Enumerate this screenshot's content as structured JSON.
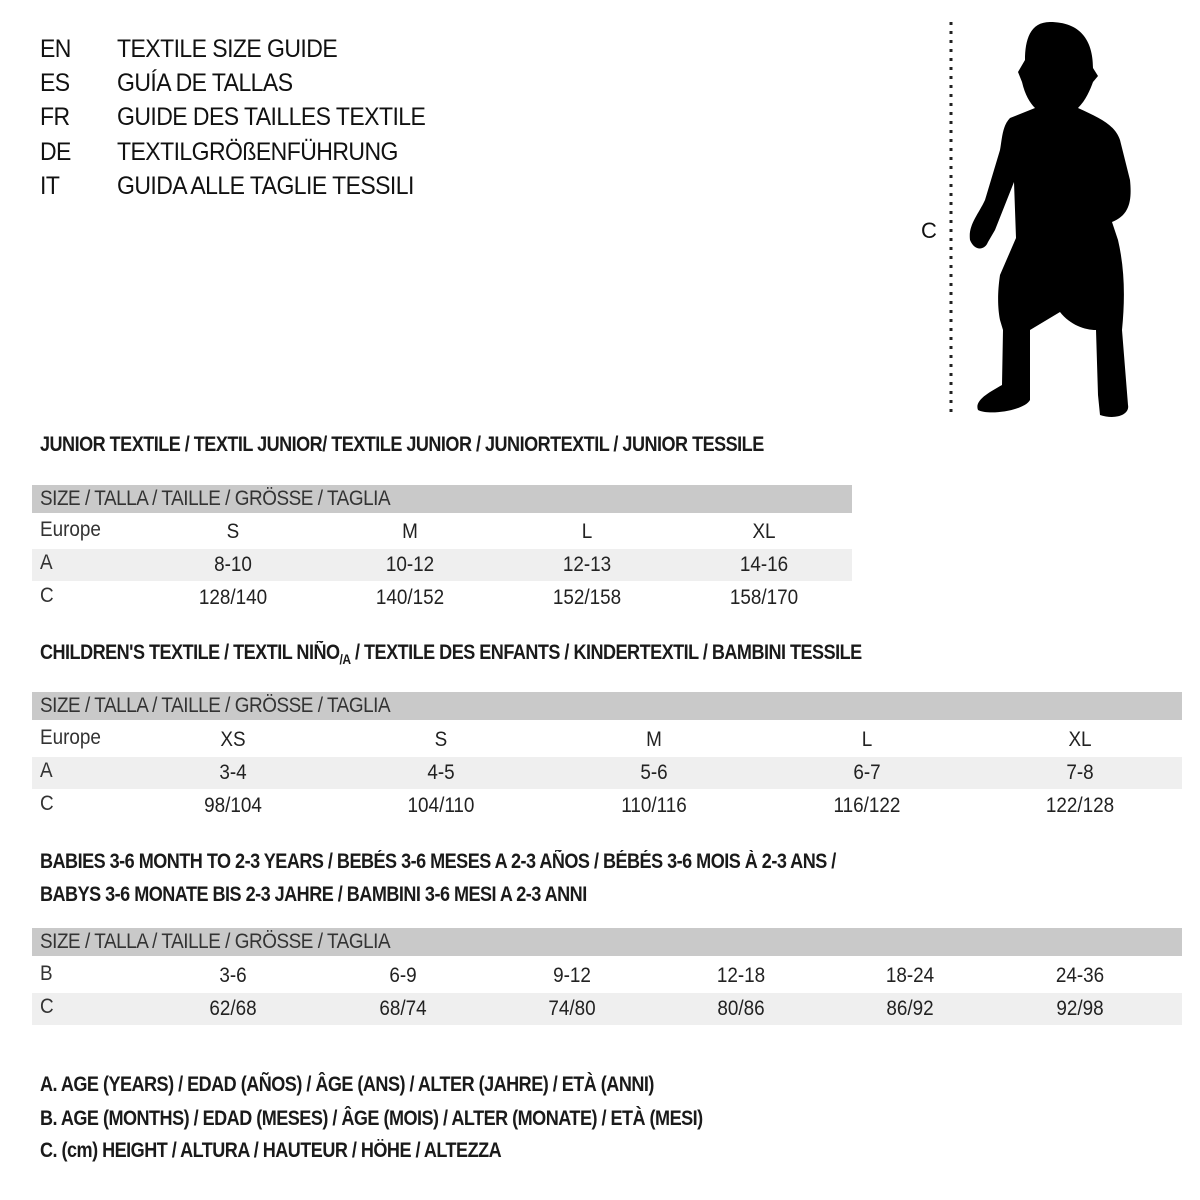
{
  "header": [
    {
      "code": "EN",
      "text": "TEXTILE SIZE GUIDE"
    },
    {
      "code": "ES",
      "text": "GUÍA DE TALLAS"
    },
    {
      "code": "FR",
      "text": "GUIDE DES TAILLES TEXTILE"
    },
    {
      "code": "DE",
      "text": "TEXTILGRÖßENFÜHRUNG"
    },
    {
      "code": "IT",
      "text": "GUIDA ALLE TAGLIE TESSILI"
    }
  ],
  "figure": {
    "measure_label": "C",
    "icon": "child-silhouette-icon"
  },
  "size_header": "SIZE / TALLA / TAILLE / GRÖSSE / TAGLIA",
  "junior": {
    "title": "JUNIOR TEXTILE / TEXTIL JUNIOR/ TEXTILE JUNIOR / JUNIORTEXTIL / JUNIOR TESSILE",
    "rows": [
      {
        "label": "Europe",
        "values": [
          "S",
          "M",
          "L",
          "XL"
        ]
      },
      {
        "label": "A",
        "values": [
          "8-10",
          "10-12",
          "12-13",
          "14-16"
        ]
      },
      {
        "label": "C",
        "values": [
          "128/140",
          "140/152",
          "152/158",
          "158/170"
        ]
      }
    ]
  },
  "children": {
    "title_pre": "CHILDREN'S TEXTILE / TEXTIL NIÑO",
    "title_sub": "/A",
    "title_post": " / TEXTILE DES ENFANTS / KINDERTEXTIL / BAMBINI TESSILE",
    "rows": [
      {
        "label": "Europe",
        "values": [
          "XS",
          "S",
          "M",
          "L",
          "XL"
        ]
      },
      {
        "label": "A",
        "values": [
          "3-4",
          "4-5",
          "5-6",
          "6-7",
          "7-8"
        ]
      },
      {
        "label": "C",
        "values": [
          "98/104",
          "104/110",
          "110/116",
          "116/122",
          "122/128"
        ]
      }
    ]
  },
  "babies": {
    "title_line1": "BABIES 3-6 MONTH TO 2-3 YEARS / BEBÉS 3-6 MESES A 2-3 AÑOS / BÉBÉS 3-6 MOIS À 2-3 ANS /",
    "title_line2": "BABYS 3-6 MONATE BIS 2-3 JAHRE / BAMBINI 3-6 MESI A 2-3 ANNI",
    "rows": [
      {
        "label": "B",
        "values": [
          "3-6",
          "6-9",
          "9-12",
          "12-18",
          "18-24",
          "24-36"
        ]
      },
      {
        "label": "C",
        "values": [
          "62/68",
          "68/74",
          "74/80",
          "80/86",
          "86/92",
          "92/98"
        ]
      }
    ]
  },
  "legend": [
    "A. AGE (YEARS) / EDAD (AÑOS) / ÂGE (ANS) / ALTER (JAHRE) / ETÀ (ANNI)",
    "B. AGE (MONTHS) / EDAD (MESES) / ÂGE (MOIS) / ALTER (MONATE) / ETÀ (MESI)",
    "C. (cm) HEIGHT / ALTURA / HAUTEUR / HÖHE / ALTEZZA"
  ],
  "colors": {
    "header_bar": "#c9c9c9",
    "alt_row": "#efefef"
  }
}
